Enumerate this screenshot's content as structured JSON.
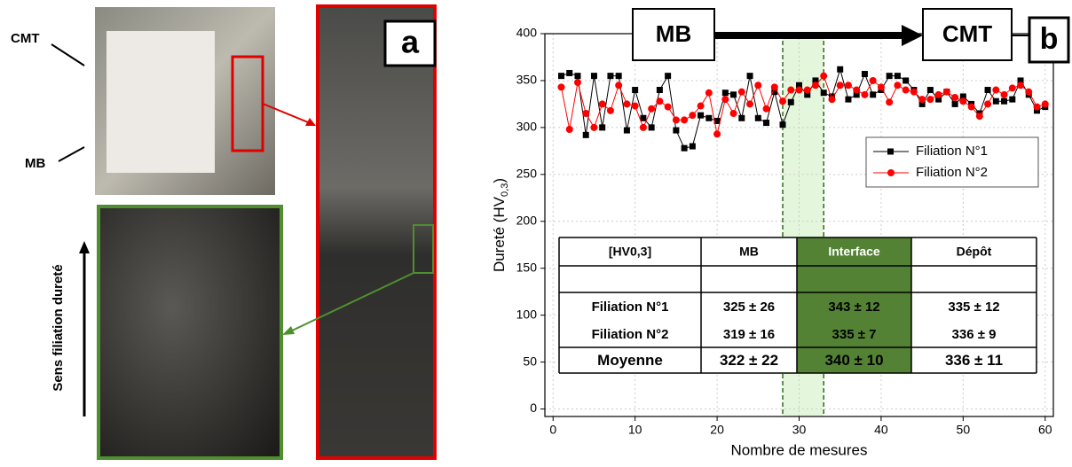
{
  "panel_a": {
    "label": "a",
    "photo_labels": [
      "CMT",
      "MB"
    ],
    "direction_label": "Sens filiation dureté"
  },
  "chart_data": {
    "type": "line",
    "panel_label": "b",
    "x_label": "Nombre de mesures",
    "y_label": "Dureté (HV",
    "y_label_sub": "0,3",
    "y_label_end": ")",
    "zones": [
      "MB",
      "CMT"
    ],
    "x": [
      1,
      2,
      3,
      4,
      5,
      6,
      7,
      8,
      9,
      10,
      11,
      12,
      13,
      14,
      15,
      16,
      17,
      18,
      19,
      20,
      21,
      22,
      23,
      24,
      25,
      26,
      27,
      28,
      29,
      30,
      31,
      32,
      33,
      34,
      35,
      36,
      37,
      38,
      39,
      40,
      41,
      42,
      43,
      44,
      45,
      46,
      47,
      48,
      49,
      50,
      51,
      52,
      53,
      54,
      55,
      56,
      57,
      58,
      59,
      60
    ],
    "series": [
      {
        "name": "Filiation N°1",
        "color": "#000000",
        "marker": "square",
        "values": [
          355,
          358,
          355,
          292,
          355,
          300,
          355,
          355,
          297,
          340,
          310,
          300,
          340,
          355,
          297,
          278,
          280,
          313,
          310,
          307,
          337,
          335,
          310,
          355,
          310,
          305,
          338,
          303,
          327,
          345,
          335,
          350,
          337,
          333,
          362,
          330,
          335,
          357,
          335,
          340,
          355,
          355,
          350,
          340,
          325,
          340,
          330,
          338,
          325,
          333,
          325,
          315,
          340,
          328,
          328,
          330,
          350,
          335,
          318,
          322
        ]
      },
      {
        "name": "Filiation N°2",
        "color": "#ff0000",
        "marker": "circle",
        "values": [
          343,
          298,
          348,
          315,
          300,
          325,
          318,
          345,
          325,
          323,
          300,
          320,
          328,
          322,
          308,
          308,
          313,
          323,
          337,
          293,
          330,
          315,
          338,
          325,
          345,
          320,
          343,
          328,
          340,
          340,
          340,
          345,
          355,
          330,
          345,
          345,
          340,
          335,
          350,
          343,
          327,
          345,
          340,
          338,
          330,
          330,
          335,
          338,
          332,
          328,
          322,
          312,
          325,
          340,
          335,
          342,
          345,
          338,
          322,
          325
        ]
      }
    ],
    "interface_band": [
      28,
      33
    ],
    "xlim": [
      -1,
      61
    ],
    "ylim": [
      -8,
      400
    ],
    "xticks": [
      0,
      10,
      20,
      30,
      40,
      50,
      60
    ],
    "yticks": [
      0,
      50,
      100,
      150,
      200,
      250,
      300,
      350,
      400
    ],
    "grid": true,
    "table": {
      "header": [
        "[HV0,3]",
        "MB",
        "Interface",
        "Dépôt"
      ],
      "rows": [
        [
          "Filiation N°1",
          "325 ± 26",
          "343 ± 12",
          "335 ± 12"
        ],
        [
          "Filiation N°2",
          "319 ± 16",
          "335 ± 7",
          "336 ± 9"
        ],
        [
          "Moyenne",
          "322 ± 22",
          "340 ± 10",
          "336 ± 11"
        ]
      ]
    }
  }
}
